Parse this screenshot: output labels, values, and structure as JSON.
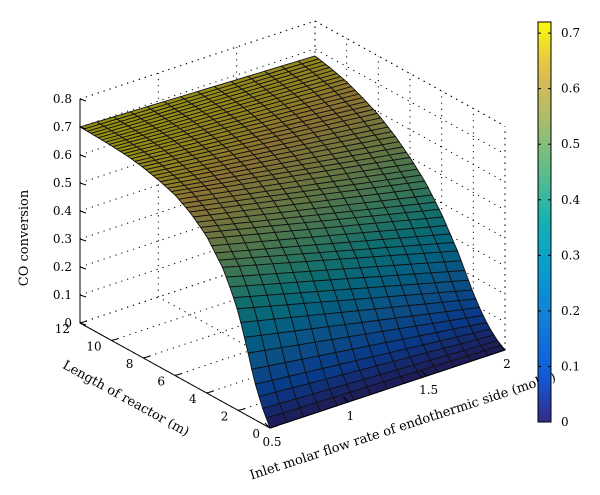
{
  "chart_data": {
    "type": "surface3d",
    "title": "",
    "xlabel": "Inlet molar flow rate of endothermic side (mol/s)",
    "ylabel": "Length of reactor (m)",
    "zlabel": "CO conversion",
    "x_ticks": [
      "0.5",
      "1",
      "1.5",
      "2"
    ],
    "y_ticks": [
      "0",
      "2",
      "4",
      "6",
      "8",
      "10",
      "12"
    ],
    "z_ticks": [
      "0",
      "0.1",
      "0.2",
      "0.3",
      "0.4",
      "0.5",
      "0.6",
      "0.7",
      "0.8"
    ],
    "xlim": [
      0.5,
      2
    ],
    "ylim": [
      0,
      12
    ],
    "zlim": [
      0,
      0.8
    ],
    "grid": true,
    "colorbar": {
      "ticks": [
        "0",
        "0.1",
        "0.2",
        "0.3",
        "0.4",
        "0.5",
        "0.6",
        "0.7"
      ],
      "range": [
        0,
        0.72
      ],
      "colormap": "parula"
    },
    "surface_profile": {
      "description_free": true,
      "length_m": [
        0,
        0.5,
        1,
        1.5,
        2,
        2.5,
        3,
        4,
        5,
        6,
        7,
        8,
        9,
        10,
        11,
        12
      ],
      "co_conversion_at_flow_0_5": [
        0.0,
        0.06,
        0.14,
        0.25,
        0.35,
        0.42,
        0.48,
        0.56,
        0.61,
        0.645,
        0.665,
        0.68,
        0.69,
        0.695,
        0.698,
        0.7
      ],
      "co_conversion_at_flow_2": [
        0.0,
        0.02,
        0.05,
        0.09,
        0.14,
        0.2,
        0.26,
        0.36,
        0.44,
        0.5,
        0.55,
        0.59,
        0.62,
        0.645,
        0.662,
        0.675
      ]
    }
  }
}
